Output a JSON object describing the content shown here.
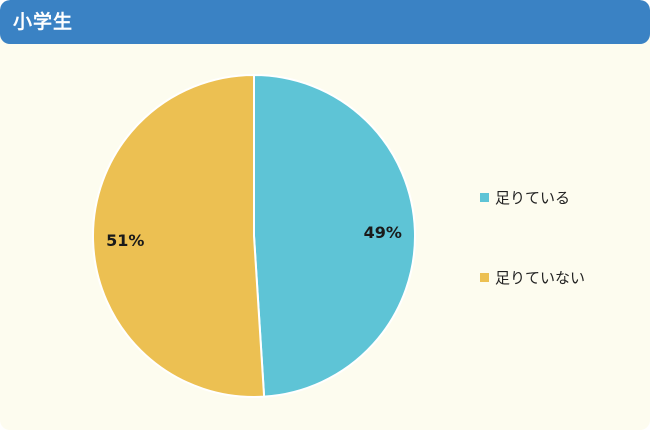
{
  "header": {
    "title": "小学生"
  },
  "chart_data": {
    "type": "pie",
    "title": "小学生",
    "slices": [
      {
        "label": "足りている",
        "value": 49,
        "value_label": "49%",
        "color": "#5ec4d6"
      },
      {
        "label": "足りていない",
        "value": 51,
        "value_label": "51%",
        "color": "#ecc052"
      }
    ],
    "start": "12 o'clock",
    "direction": "clockwise",
    "legend": "right"
  }
}
